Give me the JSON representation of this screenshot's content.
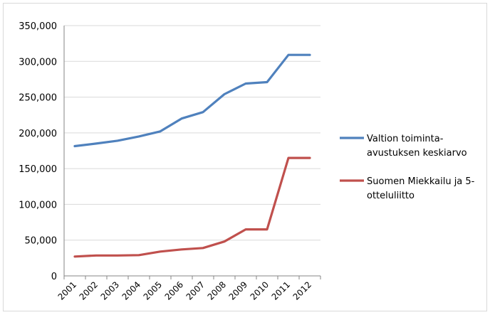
{
  "chart_data": {
    "type": "line",
    "x": [
      "2001",
      "2002",
      "2003",
      "2004",
      "2005",
      "2006",
      "2007",
      "2008",
      "2009",
      "2010",
      "2011",
      "2012"
    ],
    "yticks": [
      "0",
      "50,000",
      "100,000",
      "150,000",
      "200,000",
      "250,000",
      "300,000",
      "350,000"
    ],
    "ylim": [
      0,
      350000
    ],
    "grid": true,
    "legend_position": "right",
    "series": [
      {
        "name_lines": [
          "Valtion toiminta-",
          "avustuksen keskiarvo"
        ],
        "color": "#4f81bd",
        "values": [
          181500,
          185000,
          189000,
          195000,
          202000,
          220000,
          229000,
          254000,
          269000,
          271000,
          309000,
          309000
        ]
      },
      {
        "name_lines": [
          "Suomen Miekkailu ja 5-",
          "otteluliitto"
        ],
        "color": "#c0504d",
        "values": [
          27000,
          28500,
          28500,
          29000,
          34000,
          37000,
          39000,
          48000,
          65000,
          65000,
          165000,
          165000
        ]
      }
    ]
  }
}
